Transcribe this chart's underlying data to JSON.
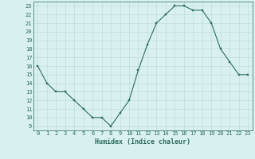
{
  "x": [
    0,
    1,
    2,
    3,
    4,
    5,
    6,
    7,
    8,
    9,
    10,
    11,
    12,
    13,
    14,
    15,
    16,
    17,
    18,
    19,
    20,
    21,
    22,
    23
  ],
  "y": [
    16,
    14,
    13,
    13,
    12,
    11,
    10,
    10,
    9,
    10.5,
    12,
    15.5,
    18.5,
    21,
    22,
    23,
    23,
    22.5,
    22.5,
    21,
    18,
    16.5,
    15,
    15
  ],
  "line_color": "#2d6b5e",
  "marker": "s",
  "marker_size": 2,
  "bg_color": "#d9f0f0",
  "grid_color": "#b8d8d8",
  "xlabel": "Humidex (Indice chaleur)",
  "xlim": [
    -0.5,
    23.5
  ],
  "ylim": [
    8.5,
    23.5
  ],
  "yticks": [
    9,
    10,
    11,
    12,
    13,
    14,
    15,
    16,
    17,
    18,
    19,
    20,
    21,
    22,
    23
  ],
  "xticks": [
    0,
    1,
    2,
    3,
    4,
    5,
    6,
    7,
    8,
    9,
    10,
    11,
    12,
    13,
    14,
    15,
    16,
    17,
    18,
    19,
    20,
    21,
    22,
    23
  ],
  "font_color": "#2d6b5e",
  "axis_color": "#2d6b5e",
  "tick_fontsize": 5,
  "xlabel_fontsize": 6,
  "linewidth": 0.8
}
